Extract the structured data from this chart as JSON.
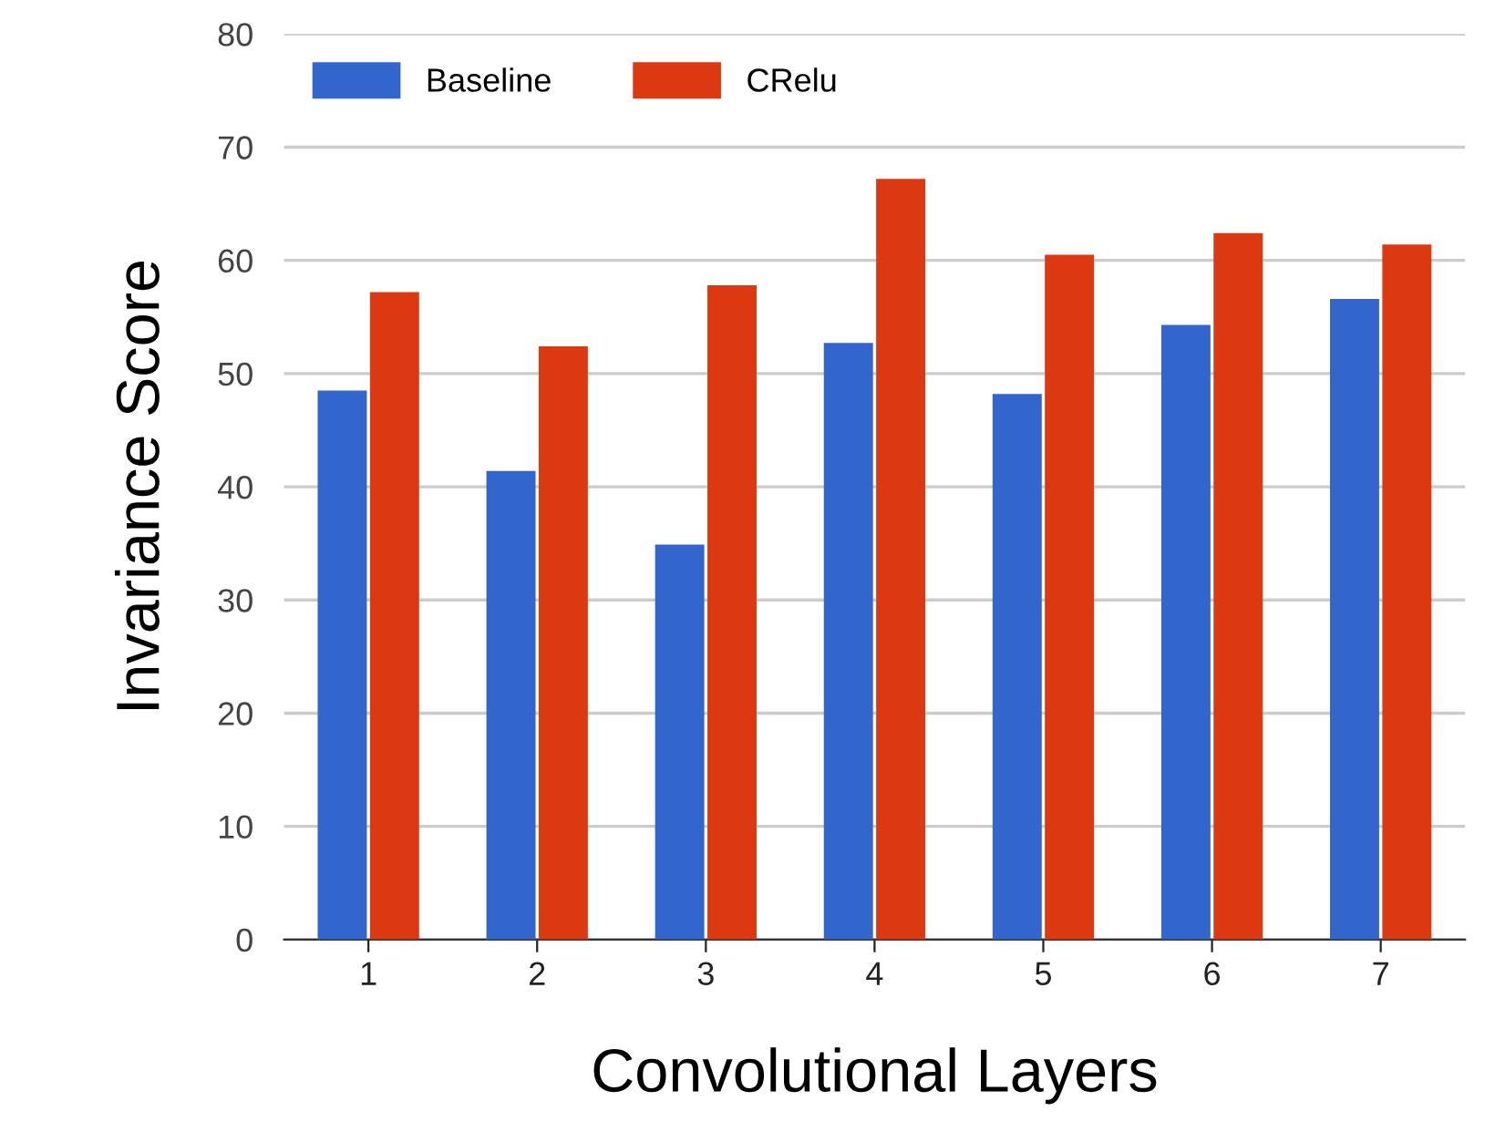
{
  "chart_data": {
    "type": "bar",
    "xlabel": "Convolutional Layers",
    "ylabel": "Invariance Score",
    "categories": [
      "1",
      "2",
      "3",
      "4",
      "5",
      "6",
      "7"
    ],
    "series": [
      {
        "name": "Baseline",
        "color": "#3366cc",
        "values": [
          48.5,
          41.4,
          34.9,
          52.7,
          48.2,
          54.3,
          56.6
        ]
      },
      {
        "name": "CRelu",
        "color": "#dc3912",
        "values": [
          57.2,
          52.4,
          57.8,
          67.2,
          60.5,
          62.4,
          61.4
        ]
      }
    ],
    "ylim": [
      0,
      80
    ],
    "yticks": [
      0,
      10,
      20,
      30,
      40,
      50,
      60,
      70,
      80
    ],
    "grid": "y",
    "legend": "top left"
  }
}
